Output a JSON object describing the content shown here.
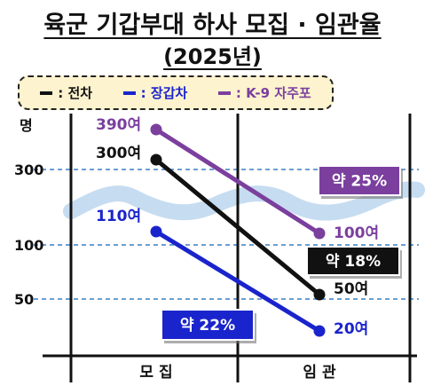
{
  "title": "육군 기갑부대 하사 모집 · 임관율",
  "subtitle": "(2025년)",
  "colors": {
    "tank": "#111111",
    "apc": "#1a24cc",
    "k9": "#7b3f9e",
    "band": "#c6dcf0",
    "grid": "#3d7fc4"
  },
  "chart_data": {
    "type": "line",
    "categories": [
      "모 집",
      "임 관"
    ],
    "ylabel": "명",
    "yticks": [
      300,
      100,
      50
    ],
    "grid": true,
    "legend": "top",
    "series": [
      {
        "name": "전차",
        "legend_label": ": 전차",
        "values": [
          300,
          50
        ],
        "value_labels": [
          "300여",
          "50여"
        ],
        "rate_label": "약 18%"
      },
      {
        "name": "장갑차",
        "legend_label": ": 장갑차",
        "values": [
          110,
          20
        ],
        "value_labels": [
          "110여",
          "20여"
        ],
        "rate_label": "약 22%"
      },
      {
        "name": "K-9 자주포",
        "legend_label": ": K-9 자주포",
        "values": [
          390,
          100
        ],
        "value_labels": [
          "390여",
          "100여"
        ],
        "rate_label": "약 25%"
      }
    ]
  }
}
